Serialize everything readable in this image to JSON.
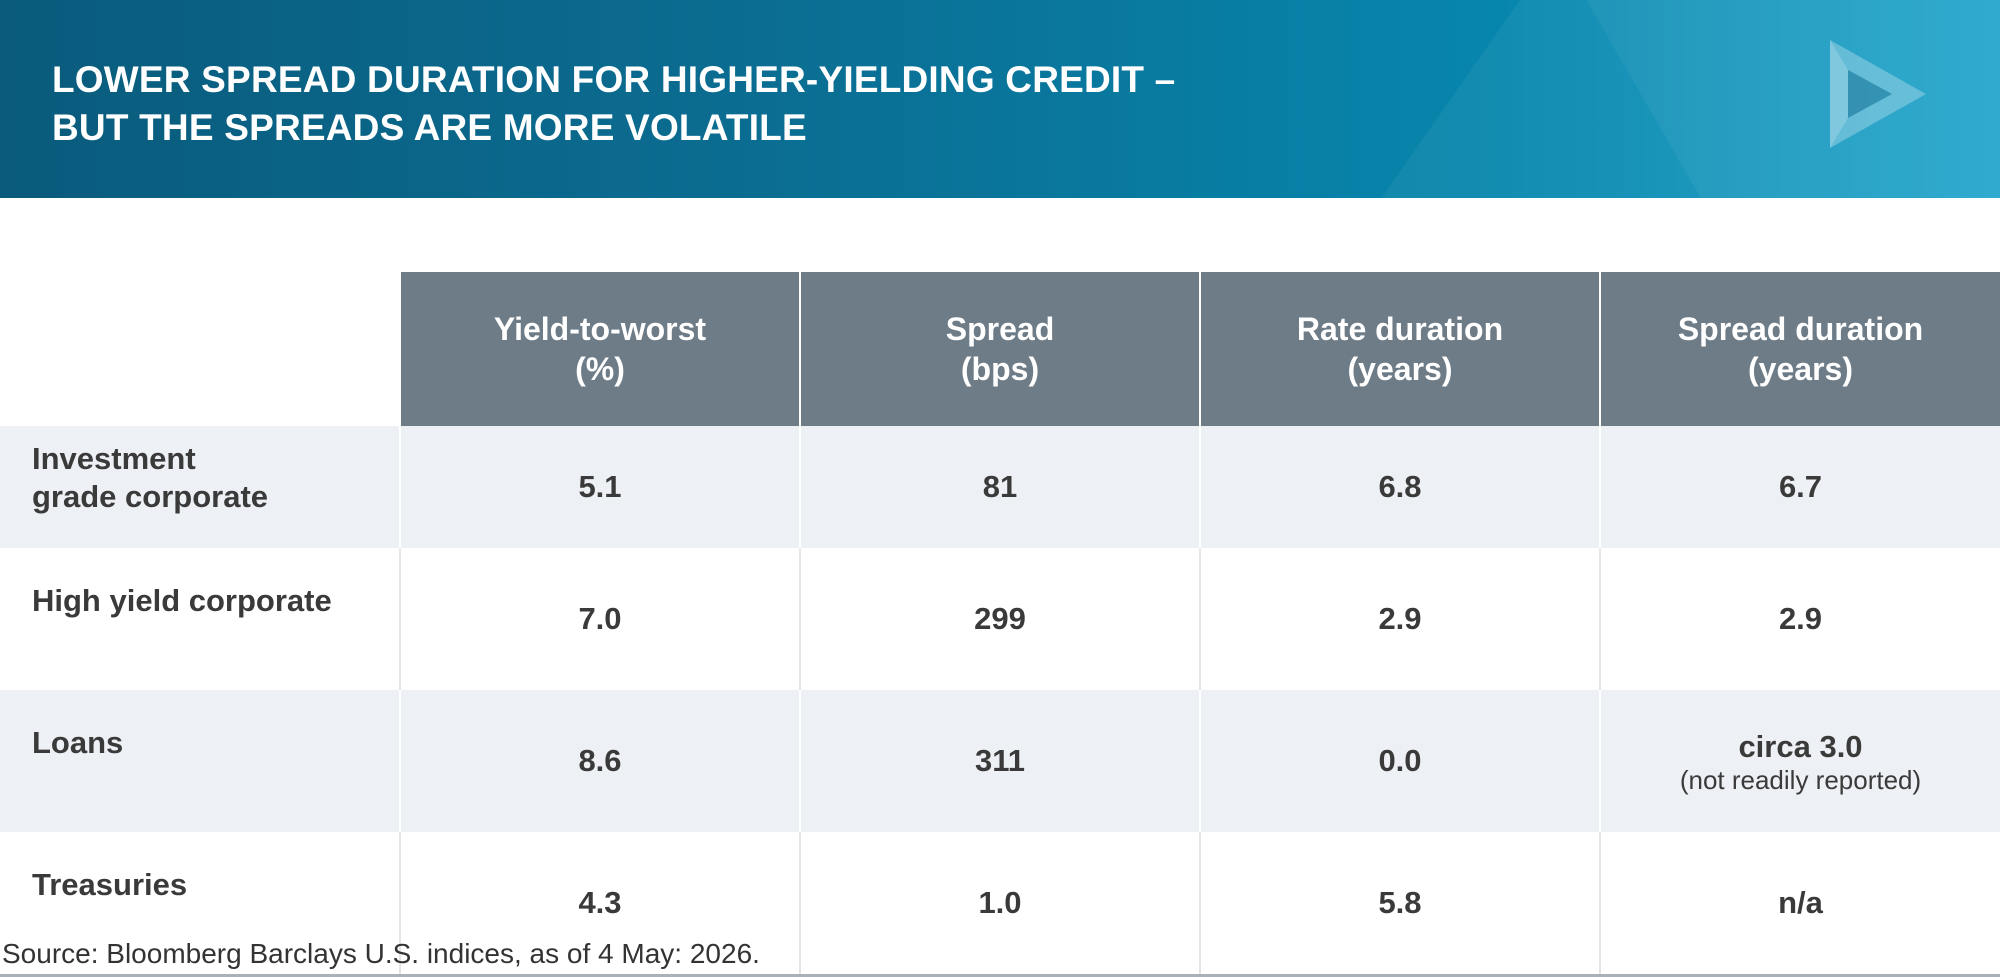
{
  "title_lines": [
    "LOWER SPREAD DURATION FOR HIGHER-YIELDING CREDIT –",
    "BUT THE SPREADS ARE MORE VOLATILE"
  ],
  "colors": {
    "banner_start": "#0a5b7c",
    "banner_end": "#1aa3cb",
    "header_fill": "#6e7c87",
    "row_shade": "#edf0f4",
    "text": "#3a3a3a"
  },
  "logo_icon": "play-triangle-icon",
  "chart_data": {
    "type": "table",
    "columns": [
      {
        "line1": "Yield-to-worst",
        "line2": "(%)"
      },
      {
        "line1": "Spread",
        "line2": "(bps)"
      },
      {
        "line1": "Rate duration",
        "line2": "(years)"
      },
      {
        "line1": "Spread duration",
        "line2": "(years)"
      }
    ],
    "rows": [
      {
        "label": "Investment grade corporate",
        "values": [
          "5.1",
          "81",
          "6.8",
          "6.7"
        ],
        "notes": [
          "",
          "",
          "",
          ""
        ]
      },
      {
        "label": "High yield corporate",
        "values": [
          "7.0",
          "299",
          "2.9",
          "2.9"
        ],
        "notes": [
          "",
          "",
          "",
          ""
        ]
      },
      {
        "label": "Loans",
        "values": [
          "8.6",
          "311",
          "0.0",
          "circa 3.0"
        ],
        "notes": [
          "",
          "",
          "",
          "(not readily reported)"
        ]
      },
      {
        "label": "Treasuries",
        "values": [
          "4.3",
          "1.0",
          "5.8",
          "n/a"
        ],
        "notes": [
          "",
          "",
          "",
          ""
        ]
      }
    ]
  },
  "source": "Source: Bloomberg Barclays U.S. indices, as of 4 May: 2026."
}
